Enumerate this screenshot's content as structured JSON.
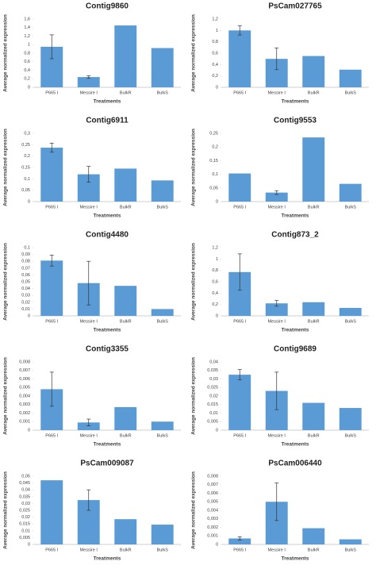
{
  "chart_data": [
    {
      "type": "bar",
      "title": "Contig9860",
      "y_label": "Average normalized expression",
      "x_label": "Treatments",
      "color": "#5b9bd5",
      "categories": [
        "P665 I",
        "Messire I",
        "BulkR",
        "BulkS"
      ],
      "values": [
        0.95,
        0.24,
        1.45,
        0.92
      ],
      "errors": [
        0.28,
        0.03,
        null,
        null
      ],
      "ylim": [
        0,
        1.6
      ],
      "yticks": [
        0,
        {
          "value": 0.2,
          "label": "0,2"
        },
        {
          "value": 0.4,
          "label": "0,4"
        },
        {
          "value": 0.6,
          "label": "0,6"
        },
        {
          "value": 0.8,
          "label": "0,8"
        },
        1,
        {
          "value": 1.2,
          "label": "1,2"
        },
        {
          "value": 1.4,
          "label": "1,4"
        },
        {
          "value": 1.6,
          "label": "1,6"
        }
      ]
    },
    {
      "type": "bar",
      "title": "PsCam027765",
      "y_label": "Average normalized expression",
      "x_label": "Treatments",
      "color": "#5b9bd5",
      "categories": [
        "P665 I",
        "Messire I",
        "BulkR",
        "BulkS"
      ],
      "values": [
        1.0,
        0.5,
        0.55,
        0.31
      ],
      "errors": [
        0.08,
        0.19,
        null,
        null
      ],
      "ylim": [
        0,
        1.2
      ],
      "yticks": [
        0,
        {
          "value": 0.2,
          "label": "0,2"
        },
        {
          "value": 0.4,
          "label": "0,4"
        },
        {
          "value": 0.6,
          "label": "0,6"
        },
        {
          "value": 0.8,
          "label": "0,8"
        },
        1,
        {
          "value": 1.2,
          "label": "1,2"
        }
      ]
    },
    {
      "type": "bar",
      "title": "Contig6911",
      "y_label": "Average normalized expression",
      "x_label": "Treatments",
      "color": "#5b9bd5",
      "categories": [
        "P665 I",
        "Messire I",
        "BulkR",
        "BulkS"
      ],
      "values": [
        0.237,
        0.12,
        0.145,
        0.093
      ],
      "errors": [
        0.02,
        0.035,
        null,
        null
      ],
      "ylim": [
        0,
        0.3
      ],
      "yticks": [
        0,
        {
          "value": 0.05,
          "label": "0,05"
        },
        {
          "value": 0.1,
          "label": "0,1"
        },
        {
          "value": 0.15,
          "label": "0,15"
        },
        {
          "value": 0.2,
          "label": "0,2"
        },
        {
          "value": 0.25,
          "label": "0,25"
        },
        {
          "value": 0.3,
          "label": "0,3"
        }
      ]
    },
    {
      "type": "bar",
      "title": "Contig9553",
      "y_label": "Average normalized expression",
      "x_label": "Treatments",
      "color": "#5b9bd5",
      "categories": [
        "P665 I",
        "Messire I",
        "BulkR",
        "BulkS"
      ],
      "values": [
        0.103,
        0.033,
        0.235,
        0.065
      ],
      "errors": [
        null,
        0.007,
        null,
        null
      ],
      "ylim": [
        0,
        0.25
      ],
      "yticks": [
        0,
        {
          "value": 0.05,
          "label": "0,05"
        },
        {
          "value": 0.1,
          "label": "0,1"
        },
        {
          "value": 0.15,
          "label": "0,15"
        },
        {
          "value": 0.2,
          "label": "0,2"
        },
        {
          "value": 0.25,
          "label": "0,25"
        }
      ]
    },
    {
      "type": "bar",
      "title": "Contig4480",
      "y_label": "Average normalized expression",
      "x_label": "Treatments",
      "color": "#5b9bd5",
      "categories": [
        "P665 I",
        "Messire I",
        "BulkR",
        "BulkS"
      ],
      "values": [
        0.081,
        0.048,
        0.044,
        0.01
      ],
      "errors": [
        0.008,
        0.032,
        null,
        null
      ],
      "ylim": [
        0,
        0.1
      ],
      "yticks": [
        0,
        {
          "value": 0.01,
          "label": "0,01"
        },
        {
          "value": 0.02,
          "label": "0,02"
        },
        {
          "value": 0.03,
          "label": "0,03"
        },
        {
          "value": 0.04,
          "label": "0,04"
        },
        {
          "value": 0.05,
          "label": "0,05"
        },
        {
          "value": 0.06,
          "label": "0,06"
        },
        {
          "value": 0.07,
          "label": "0,07"
        },
        {
          "value": 0.08,
          "label": "0,08"
        },
        {
          "value": 0.09,
          "label": "0,09"
        },
        {
          "value": 0.1,
          "label": "0,1"
        }
      ]
    },
    {
      "type": "bar",
      "title": "Contig873_2",
      "y_label": "Average normalized expression",
      "x_label": "Treatments",
      "color": "#5b9bd5",
      "categories": [
        "P665 I",
        "Messire I",
        "BulkR",
        "BulkS"
      ],
      "values": [
        0.77,
        0.22,
        0.24,
        0.14
      ],
      "errors": [
        0.32,
        0.05,
        null,
        null
      ],
      "ylim": [
        0,
        1.2
      ],
      "yticks": [
        0,
        {
          "value": 0.2,
          "label": "0,2"
        },
        {
          "value": 0.4,
          "label": "0,4"
        },
        {
          "value": 0.6,
          "label": "0,6"
        },
        {
          "value": 0.8,
          "label": "0,8"
        },
        1,
        {
          "value": 1.2,
          "label": "1,2"
        }
      ]
    },
    {
      "type": "bar",
      "title": "Contig3355",
      "y_label": "Average normalized expression",
      "x_label": "Treatments",
      "color": "#5b9bd5",
      "categories": [
        "P665 I",
        "Messire I",
        "BulkR",
        "BulkS"
      ],
      "values": [
        0.0048,
        0.0009,
        0.0027,
        0.001
      ],
      "errors": [
        0.002,
        0.0004,
        null,
        null
      ],
      "ylim": [
        0,
        0.008
      ],
      "yticks": [
        0,
        {
          "value": 0.001,
          "label": "0,001"
        },
        {
          "value": 0.002,
          "label": "0,002"
        },
        {
          "value": 0.003,
          "label": "0,003"
        },
        {
          "value": 0.004,
          "label": "0,004"
        },
        {
          "value": 0.005,
          "label": "0,005"
        },
        {
          "value": 0.006,
          "label": "0,006"
        },
        {
          "value": 0.007,
          "label": "0,007"
        },
        {
          "value": 0.008,
          "label": "0,008"
        }
      ]
    },
    {
      "type": "bar",
      "title": "Contig9689",
      "y_label": "Average normalized expression",
      "x_label": "Treatments",
      "color": "#5b9bd5",
      "categories": [
        "P665 I",
        "Messire I",
        "BulkR",
        "BulkS"
      ],
      "values": [
        0.0325,
        0.023,
        0.016,
        0.013
      ],
      "errors": [
        0.003,
        0.011,
        null,
        null
      ],
      "ylim": [
        0,
        0.04
      ],
      "yticks": [
        0,
        {
          "value": 0.005,
          "label": "0,005"
        },
        {
          "value": 0.01,
          "label": "0,01"
        },
        {
          "value": 0.015,
          "label": "0,015"
        },
        {
          "value": 0.02,
          "label": "0,02"
        },
        {
          "value": 0.025,
          "label": "0,025"
        },
        {
          "value": 0.03,
          "label": "0,03"
        },
        {
          "value": 0.035,
          "label": "0,035"
        },
        {
          "value": 0.04,
          "label": "0,04"
        }
      ]
    },
    {
      "type": "bar",
      "title": "PsCam009087",
      "y_label": "Average normalized expression",
      "x_label": "Treatments",
      "color": "#5b9bd5",
      "categories": [
        "P665 I",
        "Messire I",
        "BulkR",
        "BulkS"
      ],
      "values": [
        0.047,
        0.0325,
        0.0185,
        0.0145
      ],
      "errors": [
        null,
        0.0075,
        null,
        null
      ],
      "ylim": [
        0,
        0.05
      ],
      "yticks": [
        0,
        {
          "value": 0.005,
          "label": "0,005"
        },
        {
          "value": 0.01,
          "label": "0,01"
        },
        {
          "value": 0.015,
          "label": "0,015"
        },
        {
          "value": 0.02,
          "label": "0,02"
        },
        {
          "value": 0.025,
          "label": "0,025"
        },
        {
          "value": 0.03,
          "label": "0,03"
        },
        {
          "value": 0.035,
          "label": "0,035"
        },
        {
          "value": 0.04,
          "label": "0,04"
        },
        {
          "value": 0.045,
          "label": "0,045"
        },
        {
          "value": 0.05,
          "label": "0,05"
        }
      ]
    },
    {
      "type": "bar",
      "title": "PsCam006440",
      "y_label": "Average normalized expression",
      "x_label": "Treatments",
      "color": "#5b9bd5",
      "categories": [
        "P665 I",
        "Messire I",
        "BulkR",
        "BulkS"
      ],
      "values": [
        0.0007,
        0.005,
        0.0019,
        0.0006
      ],
      "errors": [
        0.0002,
        0.0022,
        null,
        null
      ],
      "ylim": [
        0,
        0.008
      ],
      "yticks": [
        0,
        {
          "value": 0.001,
          "label": "0,001"
        },
        {
          "value": 0.002,
          "label": "0,002"
        },
        {
          "value": 0.003,
          "label": "0,003"
        },
        {
          "value": 0.004,
          "label": "0,004"
        },
        {
          "value": 0.005,
          "label": "0,005"
        },
        {
          "value": 0.006,
          "label": "0,006"
        },
        {
          "value": 0.007,
          "label": "0,007"
        },
        {
          "value": 0.008,
          "label": "0,008"
        }
      ]
    }
  ]
}
